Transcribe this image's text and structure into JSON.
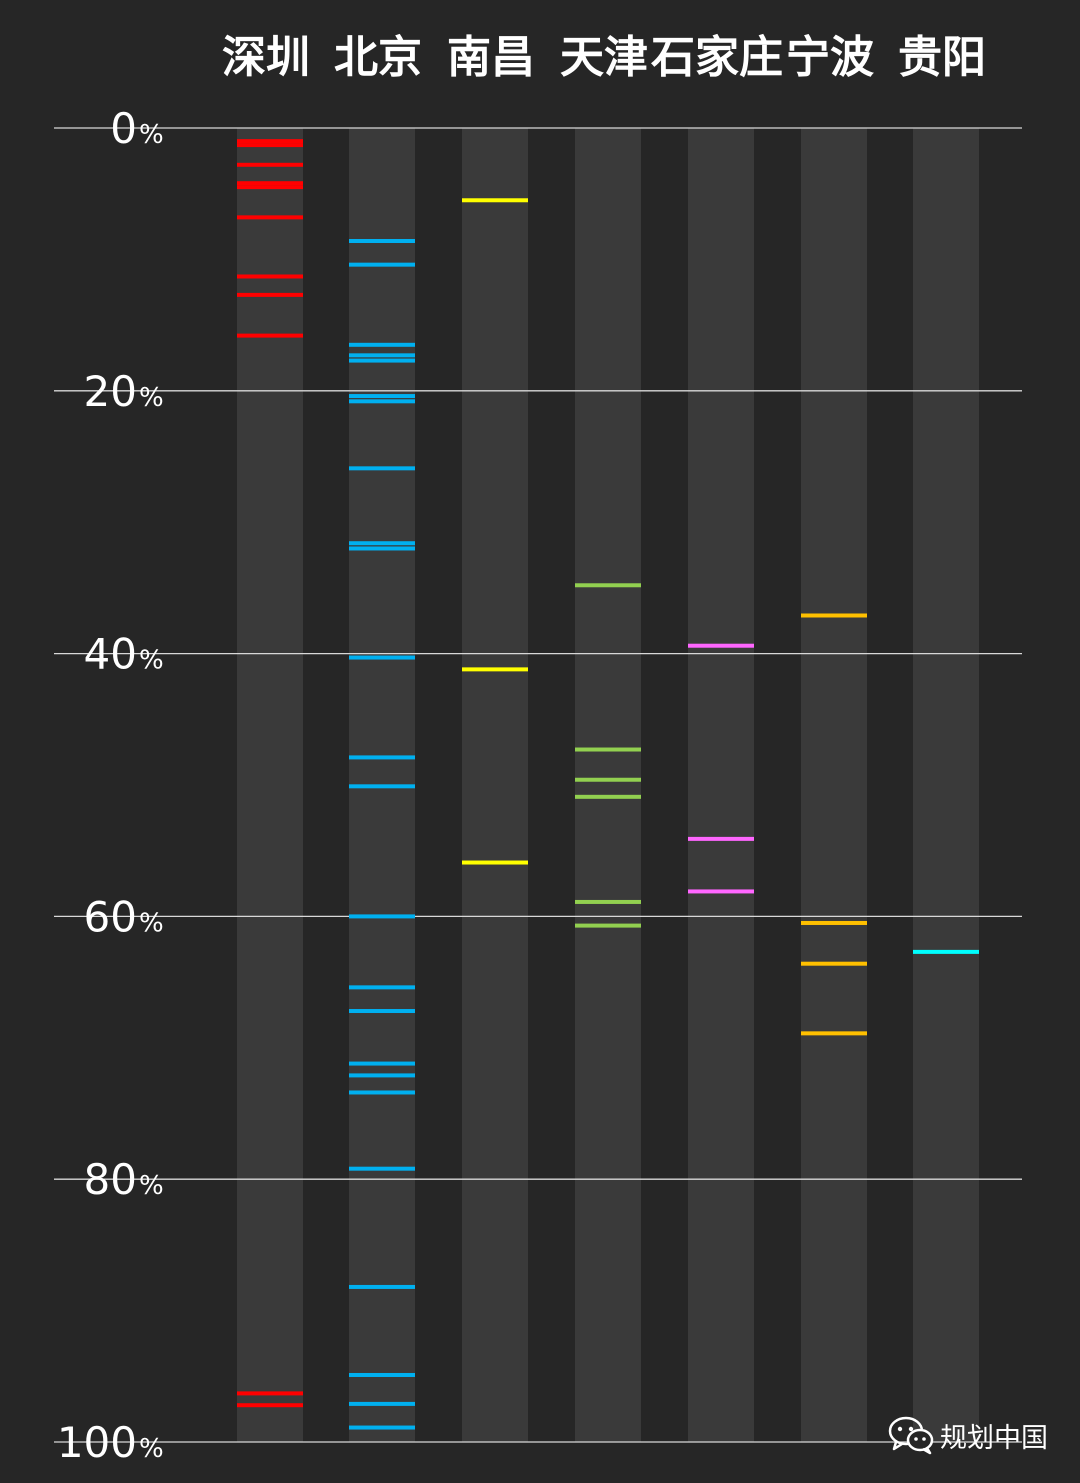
{
  "chart_data": {
    "type": "barcode",
    "y_axis": {
      "range": [
        0,
        100
      ],
      "unit": "%",
      "ticks": [
        0,
        20,
        40,
        60,
        80,
        100
      ],
      "grid": true
    },
    "series": [
      {
        "name": "深圳",
        "color": "#ff0000",
        "values": [
          1.0,
          1.3,
          2.8,
          4.2,
          4.5,
          6.8,
          11.3,
          12.7,
          15.8,
          96.3,
          97.2
        ]
      },
      {
        "name": "北京",
        "color": "#00b0f0",
        "values": [
          8.6,
          10.4,
          16.5,
          17.3,
          17.7,
          20.4,
          20.8,
          25.9,
          31.6,
          32.0,
          40.3,
          47.9,
          50.1,
          60.0,
          65.4,
          67.2,
          71.2,
          72.1,
          73.4,
          79.2,
          88.2,
          94.9,
          97.1,
          98.9
        ]
      },
      {
        "name": "南昌",
        "color": "#ffff00",
        "values": [
          5.5,
          41.2,
          55.9
        ]
      },
      {
        "name": "天津",
        "color": "#92d050",
        "values": [
          34.8,
          47.3,
          49.6,
          50.9,
          58.9,
          60.7
        ]
      },
      {
        "name": "石家庄",
        "color": "#ff66ff",
        "values": [
          39.4,
          54.1,
          58.1
        ]
      },
      {
        "name": "宁波",
        "color": "#ffc000",
        "values": [
          37.1,
          60.5,
          63.6,
          68.9
        ]
      },
      {
        "name": "贵阳",
        "color": "#00ffff",
        "values": [
          62.7
        ]
      }
    ]
  },
  "watermark": {
    "text": "规划中国",
    "icon": "wechat-icon"
  }
}
